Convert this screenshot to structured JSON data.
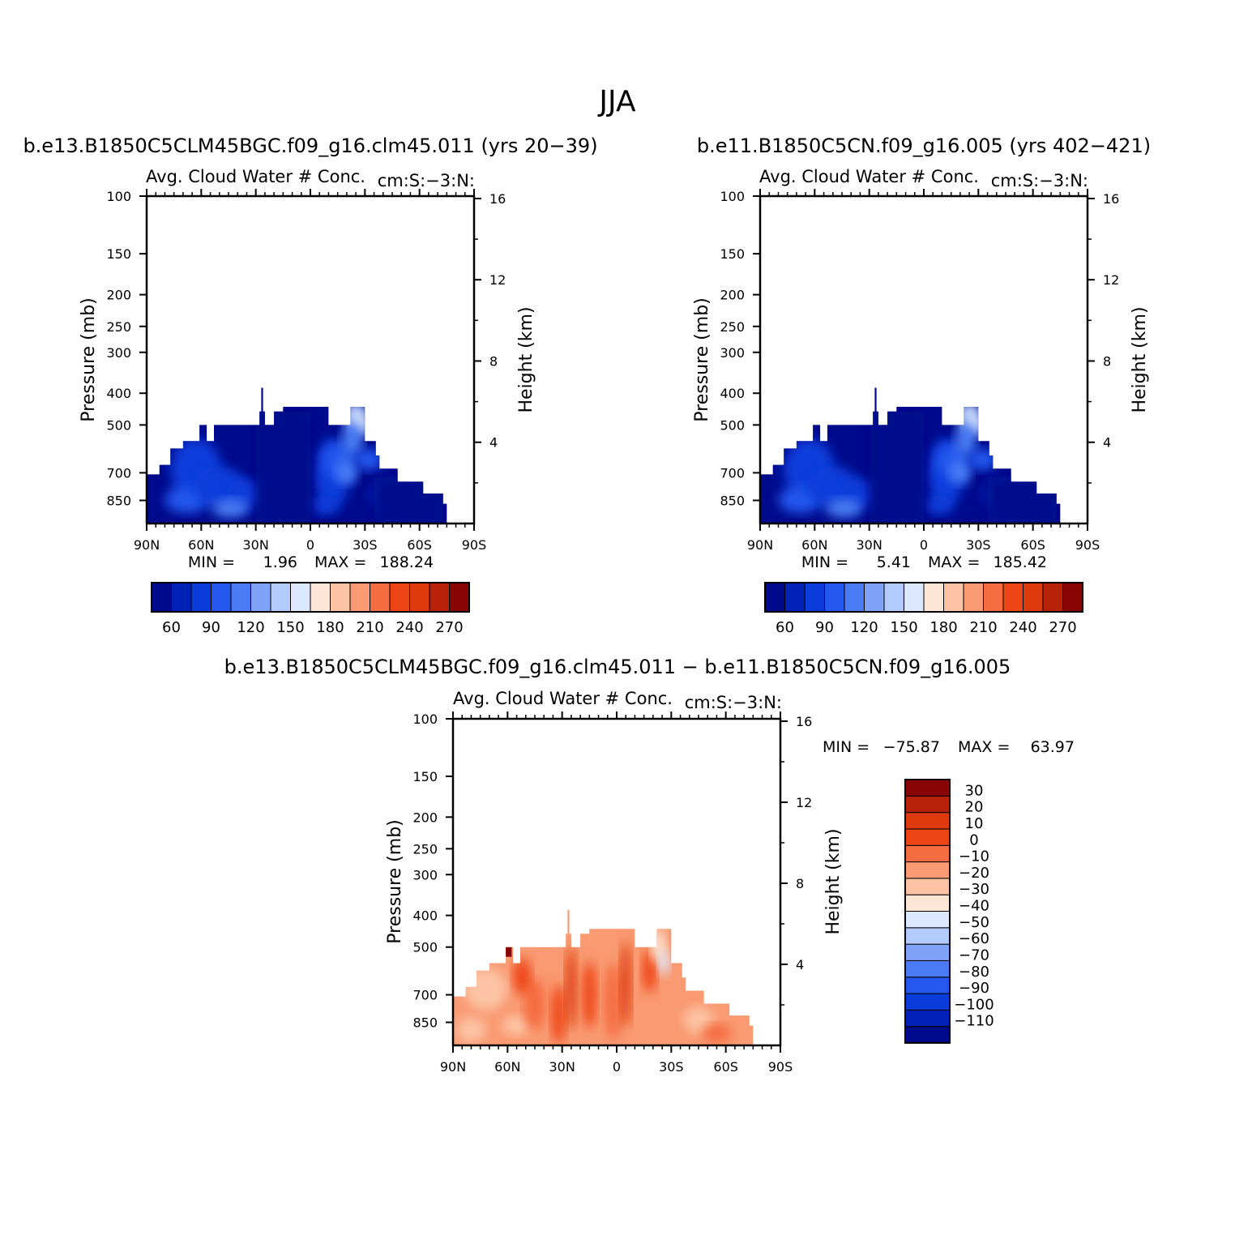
{
  "page": {
    "title": "JJA"
  },
  "colors": {
    "abs_palette": [
      "#000a8c",
      "#0021b5",
      "#0a3cdc",
      "#2457ee",
      "#4a7bf5",
      "#7ea3f8",
      "#b3cbfc",
      "#dbe8fd",
      "#fde6d5",
      "#fcc4a5",
      "#f99a72",
      "#f56c40",
      "#ee4516",
      "#de3a0e",
      "#b72209",
      "#880505"
    ],
    "diff_palette": [
      "#000a8c",
      "#0021b5",
      "#0a3cdc",
      "#2457ee",
      "#4a7bf5",
      "#7ea3f8",
      "#b3cbfc",
      "#dbe8fd",
      "#fde6d5",
      "#fcc4a5",
      "#f99a72",
      "#f56c40",
      "#ee4516",
      "#de3a0e",
      "#b72209",
      "#880505"
    ]
  },
  "chart_data": [
    {
      "type": "heatmap",
      "title": "b.e13.B1850C5CLM45BGC.f09_g16.clm45.011 (yrs 20-39)",
      "subtitle": "Avg. Cloud Water # Conc.",
      "units_label": "cm:S:-3:N:",
      "xlabel": "",
      "ylabel": "Pressure (mb)",
      "ylabel_right": "Height (km)",
      "x_ticks": [
        "90N",
        "60N",
        "30N",
        "0",
        "30S",
        "60S",
        "90S"
      ],
      "y_ticks": [
        "100",
        "150",
        "200",
        "250",
        "300",
        "400",
        "500",
        "700",
        "850"
      ],
      "y_ticks_right": [
        "16",
        "12",
        "8",
        "4"
      ],
      "min_label": "MIN =",
      "min_value": "1.96",
      "max_label": "MAX =",
      "max_value": "188.24",
      "colorbar_labels": [
        "60",
        "90",
        "120",
        "150",
        "180",
        "210",
        "240",
        "270"
      ],
      "levels": [
        60,
        90,
        120,
        150,
        180,
        210,
        240,
        270
      ],
      "data_extent": {
        "lat_north": 90,
        "lat_south": -75,
        "p_top": 450,
        "p_bottom": 1000
      }
    },
    {
      "type": "heatmap",
      "title": "b.e11.B1850C5CN.f09_g16.005 (yrs 402-421)",
      "subtitle": "Avg. Cloud Water # Conc.",
      "units_label": "cm:S:-3:N:",
      "xlabel": "",
      "ylabel": "Pressure (mb)",
      "ylabel_right": "Height (km)",
      "x_ticks": [
        "90N",
        "60N",
        "30N",
        "0",
        "30S",
        "60S",
        "90S"
      ],
      "y_ticks": [
        "100",
        "150",
        "200",
        "250",
        "300",
        "400",
        "500",
        "700",
        "850"
      ],
      "y_ticks_right": [
        "16",
        "12",
        "8",
        "4"
      ],
      "min_label": "MIN =",
      "min_value": "5.41",
      "max_label": "MAX =",
      "max_value": "185.42",
      "colorbar_labels": [
        "60",
        "90",
        "120",
        "150",
        "180",
        "210",
        "240",
        "270"
      ],
      "levels": [
        60,
        90,
        120,
        150,
        180,
        210,
        240,
        270
      ],
      "data_extent": {
        "lat_north": 90,
        "lat_south": -75,
        "p_top": 450,
        "p_bottom": 1000
      }
    },
    {
      "type": "heatmap",
      "title": "b.e13.B1850C5CLM45BGC.f09_g16.clm45.011 - b.e11.B1850C5CN.f09_g16.005",
      "subtitle": "Avg. Cloud Water # Conc.",
      "units_label": "cm:S:-3:N:",
      "xlabel": "",
      "ylabel": "Pressure (mb)",
      "ylabel_right": "Height (km)",
      "x_ticks": [
        "90N",
        "60N",
        "30N",
        "0",
        "30S",
        "60S",
        "90S"
      ],
      "y_ticks": [
        "100",
        "150",
        "200",
        "250",
        "300",
        "400",
        "500",
        "700",
        "850"
      ],
      "y_ticks_right": [
        "16",
        "12",
        "8",
        "4"
      ],
      "min_label": "MIN =",
      "min_value": "-75.87",
      "max_label": "MAX =",
      "max_value": "63.97",
      "colorbar_labels": [
        "30",
        "20",
        "10",
        "0",
        "-10",
        "-20",
        "-30",
        "-40",
        "-50",
        "-60",
        "-70",
        "-80",
        "-90",
        "-100",
        "-110"
      ],
      "levels": [
        30,
        20,
        10,
        0,
        -10,
        -20,
        -30,
        -40,
        -50,
        -60,
        -70,
        -80,
        -90,
        -100,
        -110
      ],
      "data_extent": {
        "lat_north": 90,
        "lat_south": -75,
        "p_top": 450,
        "p_bottom": 1000
      }
    }
  ]
}
